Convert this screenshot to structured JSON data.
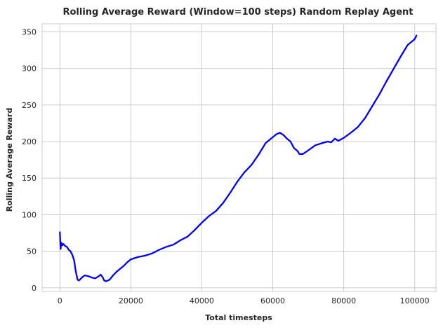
{
  "chart_data": {
    "type": "line",
    "title": "Rolling Average Reward (Window=100 steps) Random Replay Agent",
    "xlabel": "Total timesteps",
    "ylabel": "Rolling Average Reward",
    "xlim": [
      -5000,
      106000
    ],
    "ylim": [
      -5,
      361
    ],
    "xticks": [
      0,
      20000,
      40000,
      60000,
      80000,
      100000
    ],
    "xtick_labels": [
      "0",
      "20000",
      "40000",
      "60000",
      "80000",
      "100000"
    ],
    "yticks": [
      0,
      50,
      100,
      150,
      200,
      250,
      300,
      350
    ],
    "ytick_labels": [
      "0",
      "50",
      "100",
      "150",
      "200",
      "250",
      "300",
      "350"
    ],
    "grid": true,
    "series": [
      {
        "color": "#0000ff",
        "x": [
          0,
          200,
          400,
          700,
          1000,
          1500,
          2000,
          2500,
          3000,
          3500,
          4000,
          4500,
          5000,
          5400,
          5800,
          6200,
          7000,
          8000,
          9000,
          10000,
          11000,
          11500,
          12000,
          12500,
          13000,
          14000,
          15000,
          16000,
          17000,
          18000,
          19000,
          20000,
          22000,
          24000,
          26000,
          28000,
          30000,
          32000,
          34000,
          36000,
          38000,
          40000,
          42000,
          44000,
          46000,
          48000,
          50000,
          52000,
          54000,
          56000,
          58000,
          59500,
          61000,
          62000,
          63000,
          64000,
          65000,
          66000,
          67000,
          67500,
          68500,
          70000,
          72000,
          74000,
          75500,
          76500,
          77500,
          78500,
          80000,
          82000,
          84000,
          86000,
          88000,
          90000,
          92000,
          94000,
          96000,
          98000,
          100000,
          100500
        ],
        "y": [
          76,
          53,
          62,
          58,
          60,
          57,
          56,
          52,
          50,
          45,
          38,
          22,
          11,
          10,
          12,
          14,
          17,
          16,
          14,
          13,
          16,
          18,
          15,
          10,
          9,
          11,
          17,
          22,
          26,
          30,
          35,
          39,
          42,
          44,
          47,
          52,
          56,
          59,
          65,
          70,
          79,
          89,
          98,
          105,
          116,
          130,
          145,
          158,
          168,
          182,
          198,
          204,
          210,
          212,
          209,
          204,
          200,
          191,
          187,
          183,
          183,
          188,
          195,
          198,
          200,
          199,
          204,
          201,
          205,
          212,
          220,
          232,
          248,
          264,
          282,
          299,
          316,
          332,
          340,
          345
        ]
      }
    ]
  }
}
